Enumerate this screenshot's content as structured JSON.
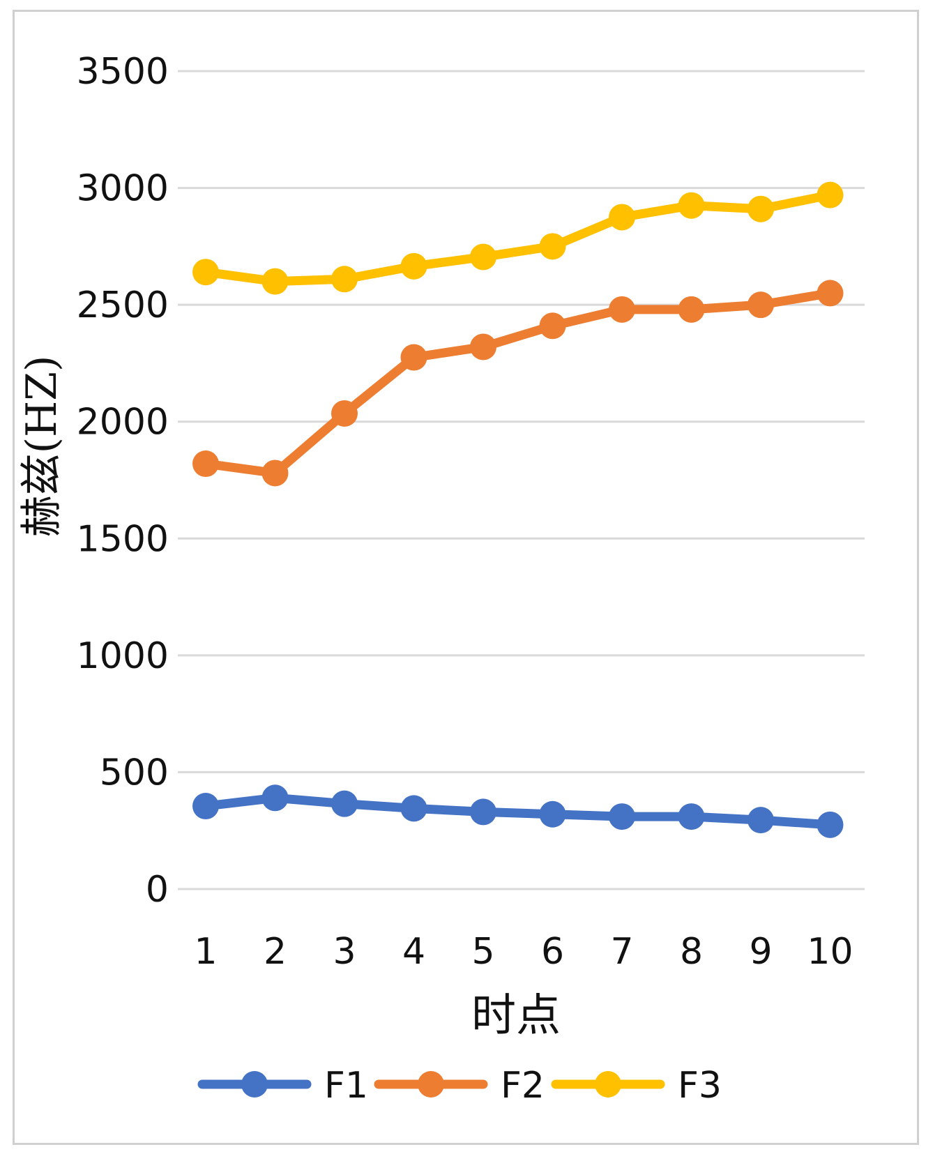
{
  "chart_data": {
    "type": "line",
    "categories": [
      "1",
      "2",
      "3",
      "4",
      "5",
      "6",
      "7",
      "8",
      "9",
      "10"
    ],
    "series": [
      {
        "name": "F1",
        "color": "#4472C4",
        "values": [
          355,
          390,
          365,
          345,
          330,
          320,
          310,
          310,
          295,
          275
        ]
      },
      {
        "name": "F2",
        "color": "#ED7D31",
        "values": [
          1820,
          1780,
          2035,
          2275,
          2320,
          2410,
          2480,
          2480,
          2500,
          2550
        ]
      },
      {
        "name": "F3",
        "color": "#FFC000",
        "values": [
          2640,
          2600,
          2610,
          2665,
          2705,
          2750,
          2875,
          2925,
          2910,
          2970
        ]
      }
    ],
    "xlabel": "时点",
    "ylabel": "赫兹(HZ)",
    "ylim": [
      0,
      3500
    ],
    "yticks": [
      0,
      500,
      1000,
      1500,
      2000,
      2500,
      3000,
      3500
    ],
    "grid": true,
    "legend": "bottom"
  }
}
